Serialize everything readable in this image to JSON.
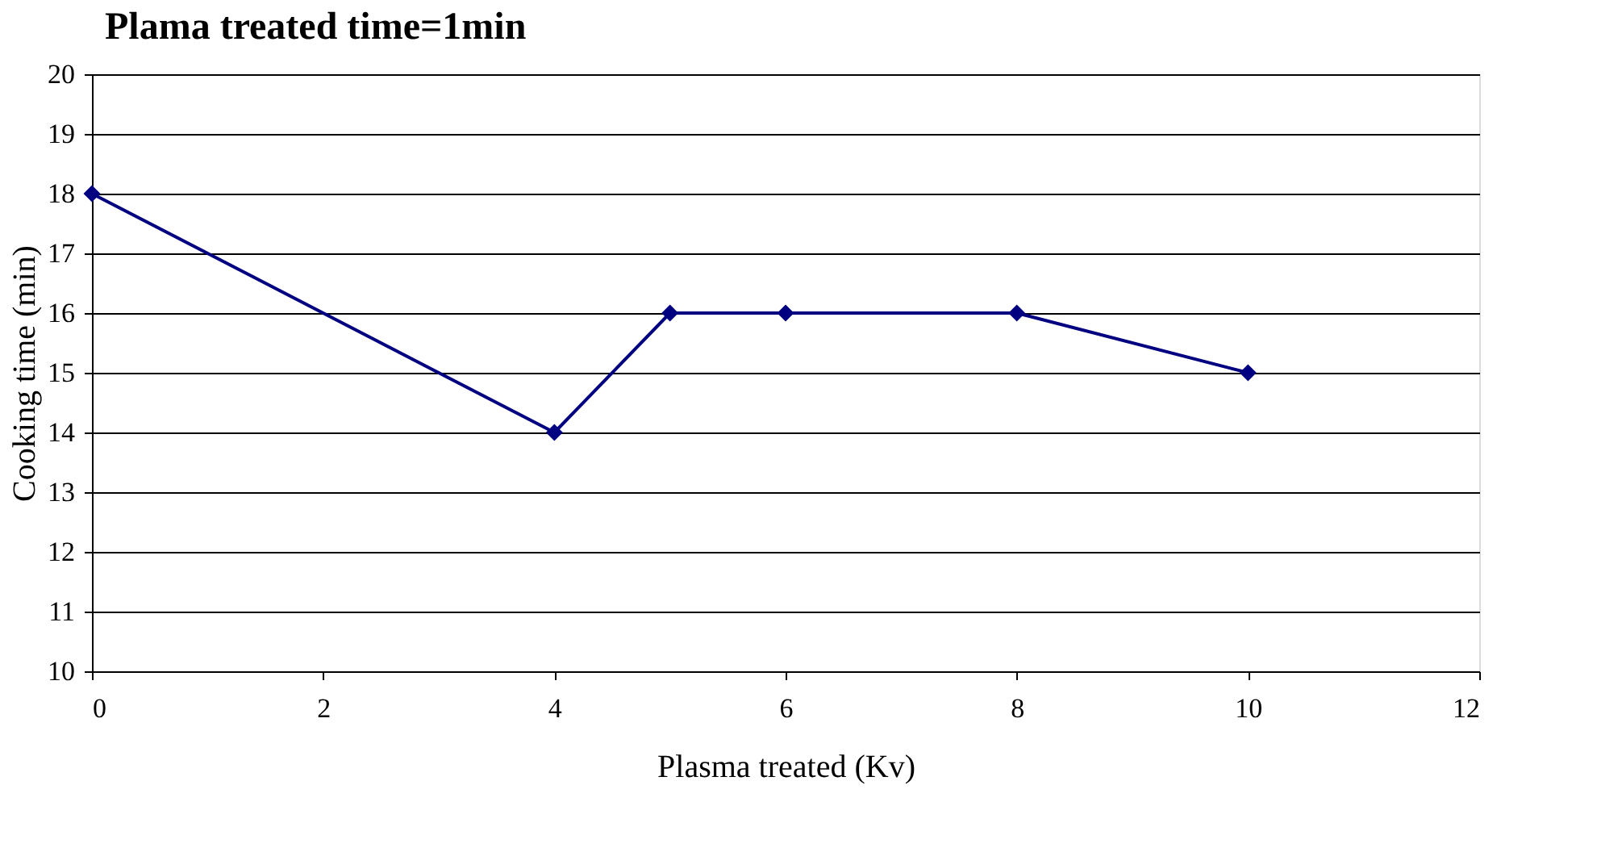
{
  "chart_data": {
    "type": "line",
    "title": "Plama treated time=1min",
    "xlabel": "Plasma treated (Kv)",
    "ylabel": "Cooking time (min)",
    "x": [
      0,
      4,
      5,
      6,
      8,
      10
    ],
    "series": [
      {
        "color": "#000080",
        "values": [
          18,
          14,
          16,
          16,
          16,
          15
        ]
      }
    ],
    "xlim": [
      0,
      12
    ],
    "xticks": [
      0,
      2,
      4,
      6,
      8,
      10,
      12
    ],
    "ylim": [
      10,
      20
    ],
    "yticks": [
      10,
      11,
      12,
      13,
      14,
      15,
      16,
      17,
      18,
      19,
      20
    ],
    "grid": "y",
    "marker": "diamond",
    "line_style": "solid"
  }
}
